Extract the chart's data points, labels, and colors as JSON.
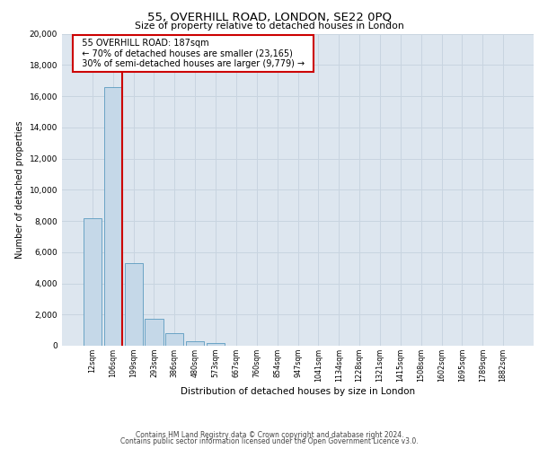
{
  "title1": "55, OVERHILL ROAD, LONDON, SE22 0PQ",
  "title2": "Size of property relative to detached houses in London",
  "xlabel": "Distribution of detached houses by size in London",
  "ylabel": "Number of detached properties",
  "bar_labels": [
    "12sqm",
    "106sqm",
    "199sqm",
    "293sqm",
    "386sqm",
    "480sqm",
    "573sqm",
    "667sqm",
    "760sqm",
    "854sqm",
    "947sqm",
    "1041sqm",
    "1134sqm",
    "1228sqm",
    "1321sqm",
    "1415sqm",
    "1508sqm",
    "1602sqm",
    "1695sqm",
    "1789sqm",
    "1882sqm"
  ],
  "bar_values": [
    8150,
    16600,
    5300,
    1750,
    800,
    280,
    200,
    0,
    0,
    0,
    0,
    0,
    0,
    0,
    0,
    0,
    0,
    0,
    0,
    0,
    0
  ],
  "bar_color": "#c5d8e8",
  "bar_edge_color": "#5a9abf",
  "property_line_color": "#cc0000",
  "annotation_title": "55 OVERHILL ROAD: 187sqm",
  "annotation_line1": "← 70% of detached houses are smaller (23,165)",
  "annotation_line2": "30% of semi-detached houses are larger (9,779) →",
  "annotation_box_color": "#ffffff",
  "annotation_box_edge": "#cc0000",
  "ylim": [
    0,
    20000
  ],
  "yticks": [
    0,
    2000,
    4000,
    6000,
    8000,
    10000,
    12000,
    14000,
    16000,
    18000,
    20000
  ],
  "grid_color": "#c8d4e0",
  "bg_color": "#dde6ef",
  "footer1": "Contains HM Land Registry data © Crown copyright and database right 2024.",
  "footer2": "Contains public sector information licensed under the Open Government Licence v3.0."
}
